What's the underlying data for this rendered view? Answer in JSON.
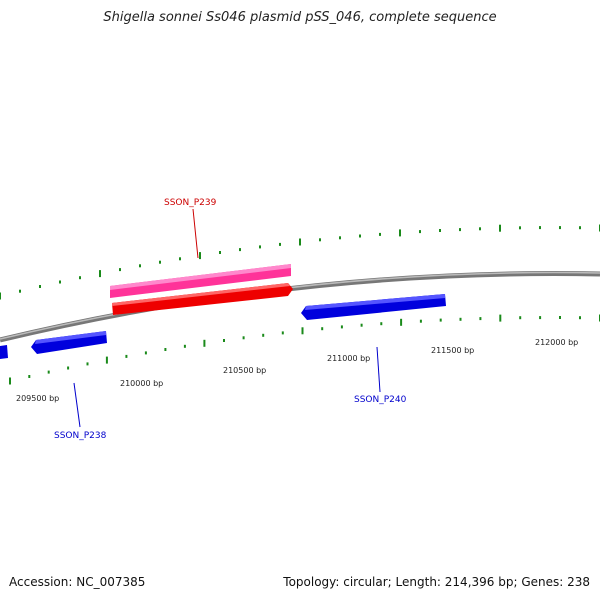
{
  "title": "Shigella sonnei Ss046 plasmid pSS_046, complete sequence",
  "accession": "Accession: NC_007385",
  "summary": "Topology: circular; Length: 214,396 bp; Genes: 238",
  "colors": {
    "backbone": "#888888",
    "tick": "#1a8a1a",
    "forward_gene_top": "#ff3399",
    "forward_gene": "#ff0000",
    "reverse_gene": "#0000ee",
    "label_forward": "#cc0000",
    "label_reverse": "#0000cc"
  },
  "tick_labels": [
    "209500 bp",
    "210000 bp",
    "210500 bp",
    "211000 bp",
    "211500 bp",
    "212000 bp"
  ],
  "genes": [
    {
      "label": "SSON_P239",
      "strand": "forward"
    },
    {
      "label": "SSON_P238",
      "strand": "reverse"
    },
    {
      "label": "SSON_P240",
      "strand": "reverse"
    }
  ]
}
